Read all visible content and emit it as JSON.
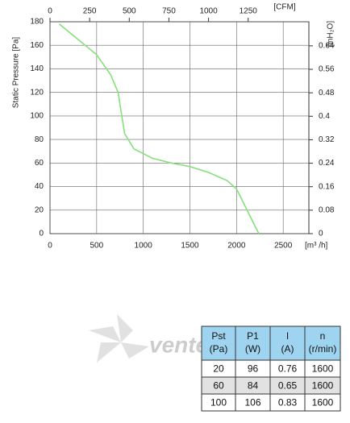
{
  "chart_data": {
    "type": "line",
    "y_label": "Static Pressure [Pa]",
    "x_label": "[m³ /h]",
    "x2_label": "[CFM]",
    "y2_label": "[inH₂O]",
    "x": [
      100,
      300,
      500,
      650,
      730,
      760,
      800,
      900,
      1100,
      1300,
      1500,
      1700,
      1900,
      2000,
      2100,
      2200,
      2240
    ],
    "series": [
      {
        "color": "#86e07a",
        "values": [
          178,
          165,
          152,
          135,
          120,
          105,
          85,
          72,
          64,
          60,
          57,
          52,
          45,
          38,
          22,
          6,
          0
        ]
      }
    ],
    "xlim": [
      0,
      2775
    ],
    "xticks": [
      0,
      500,
      1000,
      1500,
      2000,
      2500
    ],
    "x2lim": [
      0,
      1633
    ],
    "x2ticks": [
      0,
      250,
      500,
      750,
      1000,
      1250
    ],
    "ylim": [
      0,
      180
    ],
    "yticks": [
      0,
      20,
      40,
      60,
      80,
      100,
      120,
      140,
      160,
      180
    ],
    "y2lim": [
      0,
      0.722
    ],
    "y2ticks": [
      0,
      0.08,
      0.16,
      0.24,
      0.32,
      0.4,
      0.48,
      0.56,
      0.64
    ],
    "grid": true
  },
  "logo": "vente",
  "table": {
    "columns": [
      {
        "name": "Pst",
        "unit": "(Pa)"
      },
      {
        "name": "P1",
        "unit": "(W)"
      },
      {
        "name": "I",
        "unit": "(A)"
      },
      {
        "name": "n",
        "unit": "(r/min)"
      }
    ],
    "rows": [
      [
        20,
        96,
        0.76,
        1600
      ],
      [
        60,
        84,
        0.65,
        1600
      ],
      [
        100,
        106,
        0.83,
        1600
      ]
    ]
  }
}
